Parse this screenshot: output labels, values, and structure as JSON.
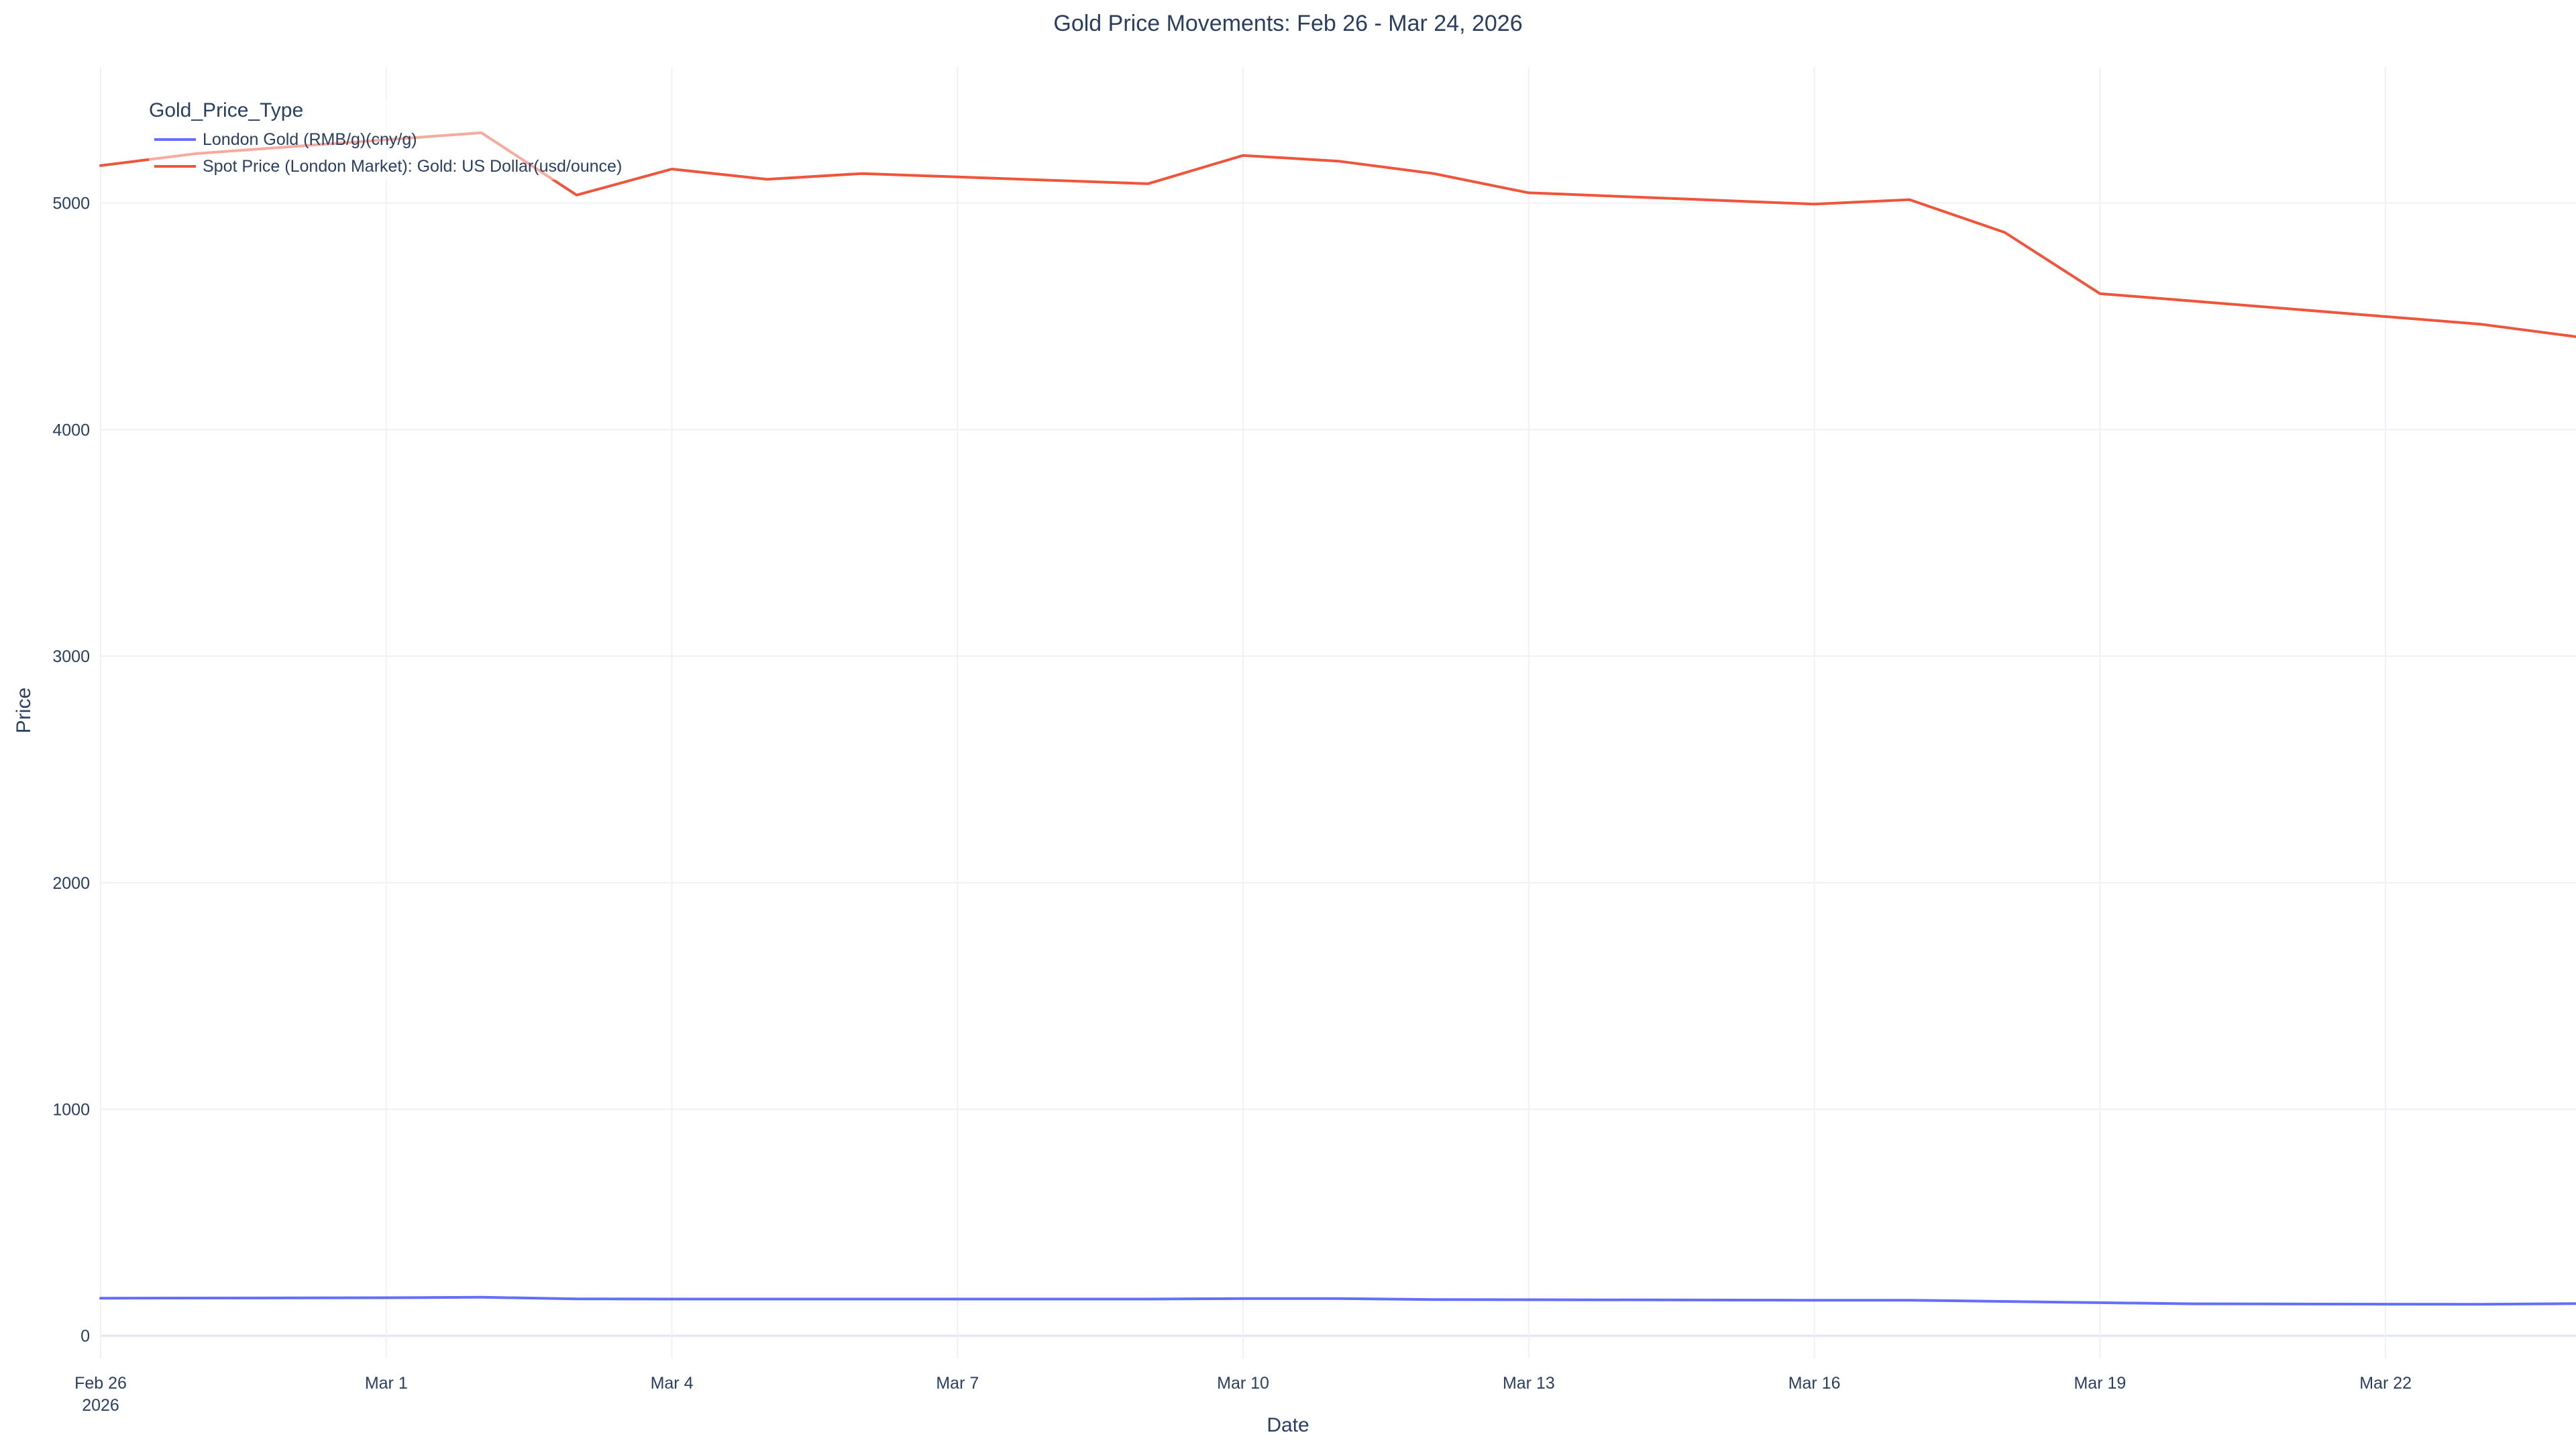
{
  "chart_data": {
    "type": "line",
    "title": "Gold Price Movements: Feb 26 - Mar 24, 2026",
    "xlabel": "Date",
    "ylabel": "Price",
    "legend_title": "Gold_Price_Type",
    "legend_position": "top-left",
    "grid": true,
    "xlim": [
      "2026-02-26",
      "2026-03-24"
    ],
    "ylim": [
      -100,
      5600
    ],
    "yticks": [
      0,
      1000,
      2000,
      3000,
      4000,
      5000
    ],
    "xticks": [
      {
        "date": "2026-02-26",
        "label": "Feb 26",
        "sublabel": "2026"
      },
      {
        "date": "2026-03-01",
        "label": "Mar 1",
        "sublabel": ""
      },
      {
        "date": "2026-03-04",
        "label": "Mar 4",
        "sublabel": ""
      },
      {
        "date": "2026-03-07",
        "label": "Mar 7",
        "sublabel": ""
      },
      {
        "date": "2026-03-10",
        "label": "Mar 10",
        "sublabel": ""
      },
      {
        "date": "2026-03-13",
        "label": "Mar 13",
        "sublabel": ""
      },
      {
        "date": "2026-03-16",
        "label": "Mar 16",
        "sublabel": ""
      },
      {
        "date": "2026-03-19",
        "label": "Mar 19",
        "sublabel": ""
      },
      {
        "date": "2026-03-22",
        "label": "Mar 22",
        "sublabel": ""
      }
    ],
    "series": [
      {
        "name": "London Gold (RMB/g)(cny/g)",
        "color": "#636efa",
        "points": [
          {
            "date": "2026-02-26",
            "value": 166
          },
          {
            "date": "2026-03-01",
            "value": 168
          },
          {
            "date": "2026-03-02",
            "value": 170
          },
          {
            "date": "2026-03-03",
            "value": 163
          },
          {
            "date": "2026-03-04",
            "value": 162
          },
          {
            "date": "2026-03-09",
            "value": 162
          },
          {
            "date": "2026-03-10",
            "value": 164
          },
          {
            "date": "2026-03-11",
            "value": 164
          },
          {
            "date": "2026-03-12",
            "value": 160
          },
          {
            "date": "2026-03-16",
            "value": 157
          },
          {
            "date": "2026-03-17",
            "value": 157
          },
          {
            "date": "2026-03-19",
            "value": 146
          },
          {
            "date": "2026-03-20",
            "value": 141
          },
          {
            "date": "2026-03-23",
            "value": 139
          },
          {
            "date": "2026-03-24",
            "value": 142
          }
        ]
      },
      {
        "name": "Spot Price (London Market): Gold: US Dollar(usd/ounce)",
        "color": "#ef553b",
        "points": [
          {
            "date": "2026-02-26",
            "value": 5165
          },
          {
            "date": "2026-02-27",
            "value": 5218
          },
          {
            "date": "2026-03-02",
            "value": 5310
          },
          {
            "date": "2026-03-03",
            "value": 5035
          },
          {
            "date": "2026-03-04",
            "value": 5150
          },
          {
            "date": "2026-03-05",
            "value": 5105
          },
          {
            "date": "2026-03-06",
            "value": 5130
          },
          {
            "date": "2026-03-09",
            "value": 5085
          },
          {
            "date": "2026-03-10",
            "value": 5210
          },
          {
            "date": "2026-03-11",
            "value": 5185
          },
          {
            "date": "2026-03-12",
            "value": 5130
          },
          {
            "date": "2026-03-13",
            "value": 5045
          },
          {
            "date": "2026-03-16",
            "value": 4995
          },
          {
            "date": "2026-03-17",
            "value": 5015
          },
          {
            "date": "2026-03-18",
            "value": 4870
          },
          {
            "date": "2026-03-19",
            "value": 4600
          },
          {
            "date": "2026-03-23",
            "value": 4465
          },
          {
            "date": "2026-03-24",
            "value": 4410
          }
        ]
      }
    ]
  }
}
